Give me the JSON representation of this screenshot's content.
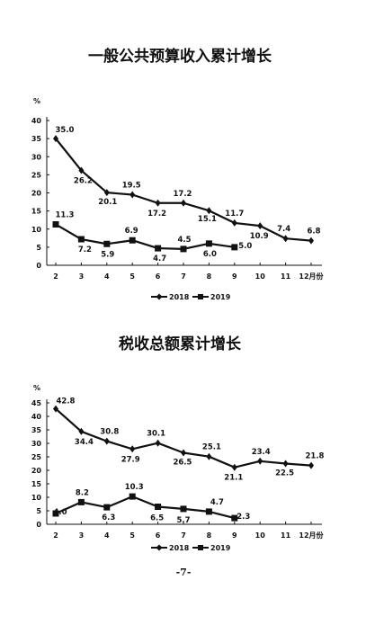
{
  "page_number": "-7-",
  "chart_data": [
    {
      "type": "line",
      "title": "一般公共预算收入累计增长",
      "ylabel": "%",
      "ylim": [
        0,
        40
      ],
      "yticks": [
        0,
        5,
        10,
        15,
        20,
        25,
        30,
        35,
        40
      ],
      "x_tick_labels": [
        "2",
        "3",
        "4",
        "5",
        "6",
        "7",
        "8",
        "9",
        "10",
        "11",
        "12月份"
      ],
      "legend_position": "bottom-center",
      "grid": false,
      "series": [
        {
          "name": "2018",
          "marker": "diamond",
          "x": [
            2,
            3,
            4,
            5,
            6,
            7,
            8,
            9,
            10,
            11,
            12
          ],
          "values": [
            35.0,
            26.2,
            20.1,
            19.5,
            17.2,
            17.2,
            15.1,
            11.7,
            10.9,
            7.4,
            6.8
          ],
          "labels": [
            "35.0",
            "26.2",
            "20.1",
            "19.5",
            "17.2",
            "17.2",
            "15.1",
            "11.7",
            "10.9",
            "7.4",
            "6.8"
          ]
        },
        {
          "name": "2019",
          "marker": "square",
          "x": [
            2,
            3,
            4,
            5,
            6,
            7,
            8,
            9
          ],
          "values": [
            11.3,
            7.2,
            5.9,
            6.9,
            4.7,
            4.5,
            6.0,
            5.0
          ],
          "labels": [
            "11.3",
            "7.2",
            "5.9",
            "6.9",
            "4.7",
            "4.5",
            "6.0",
            "5.0"
          ]
        }
      ]
    },
    {
      "type": "line",
      "title": "税收总额累计增长",
      "ylabel": "%",
      "ylim": [
        0,
        45
      ],
      "yticks": [
        0,
        5,
        10,
        15,
        20,
        25,
        30,
        35,
        40,
        45
      ],
      "x_tick_labels": [
        "2",
        "3",
        "4",
        "5",
        "6",
        "7",
        "8",
        "9",
        "10",
        "11",
        "12月份"
      ],
      "legend_position": "bottom-center",
      "grid": false,
      "series": [
        {
          "name": "2018",
          "marker": "diamond",
          "x": [
            2,
            3,
            4,
            5,
            6,
            7,
            8,
            9,
            10,
            11,
            12
          ],
          "values": [
            42.8,
            34.4,
            30.8,
            27.9,
            30.1,
            26.5,
            25.1,
            21.1,
            23.4,
            22.5,
            21.8
          ],
          "labels": [
            "42.8",
            "34.4",
            "30.8",
            "27.9",
            "30.1",
            "26.5",
            "25.1",
            "21.1",
            "23.4",
            "22.5",
            "21.8"
          ]
        },
        {
          "name": "2019",
          "marker": "square",
          "x": [
            2,
            3,
            4,
            5,
            6,
            7,
            8,
            9
          ],
          "values": [
            4.0,
            8.2,
            6.3,
            10.3,
            6.5,
            5.7,
            4.7,
            2.3
          ],
          "labels": [
            "4.0",
            "8.2",
            "6.3",
            "10.3",
            "6.5",
            "5.7",
            "4.7",
            "2.3"
          ]
        }
      ]
    }
  ]
}
